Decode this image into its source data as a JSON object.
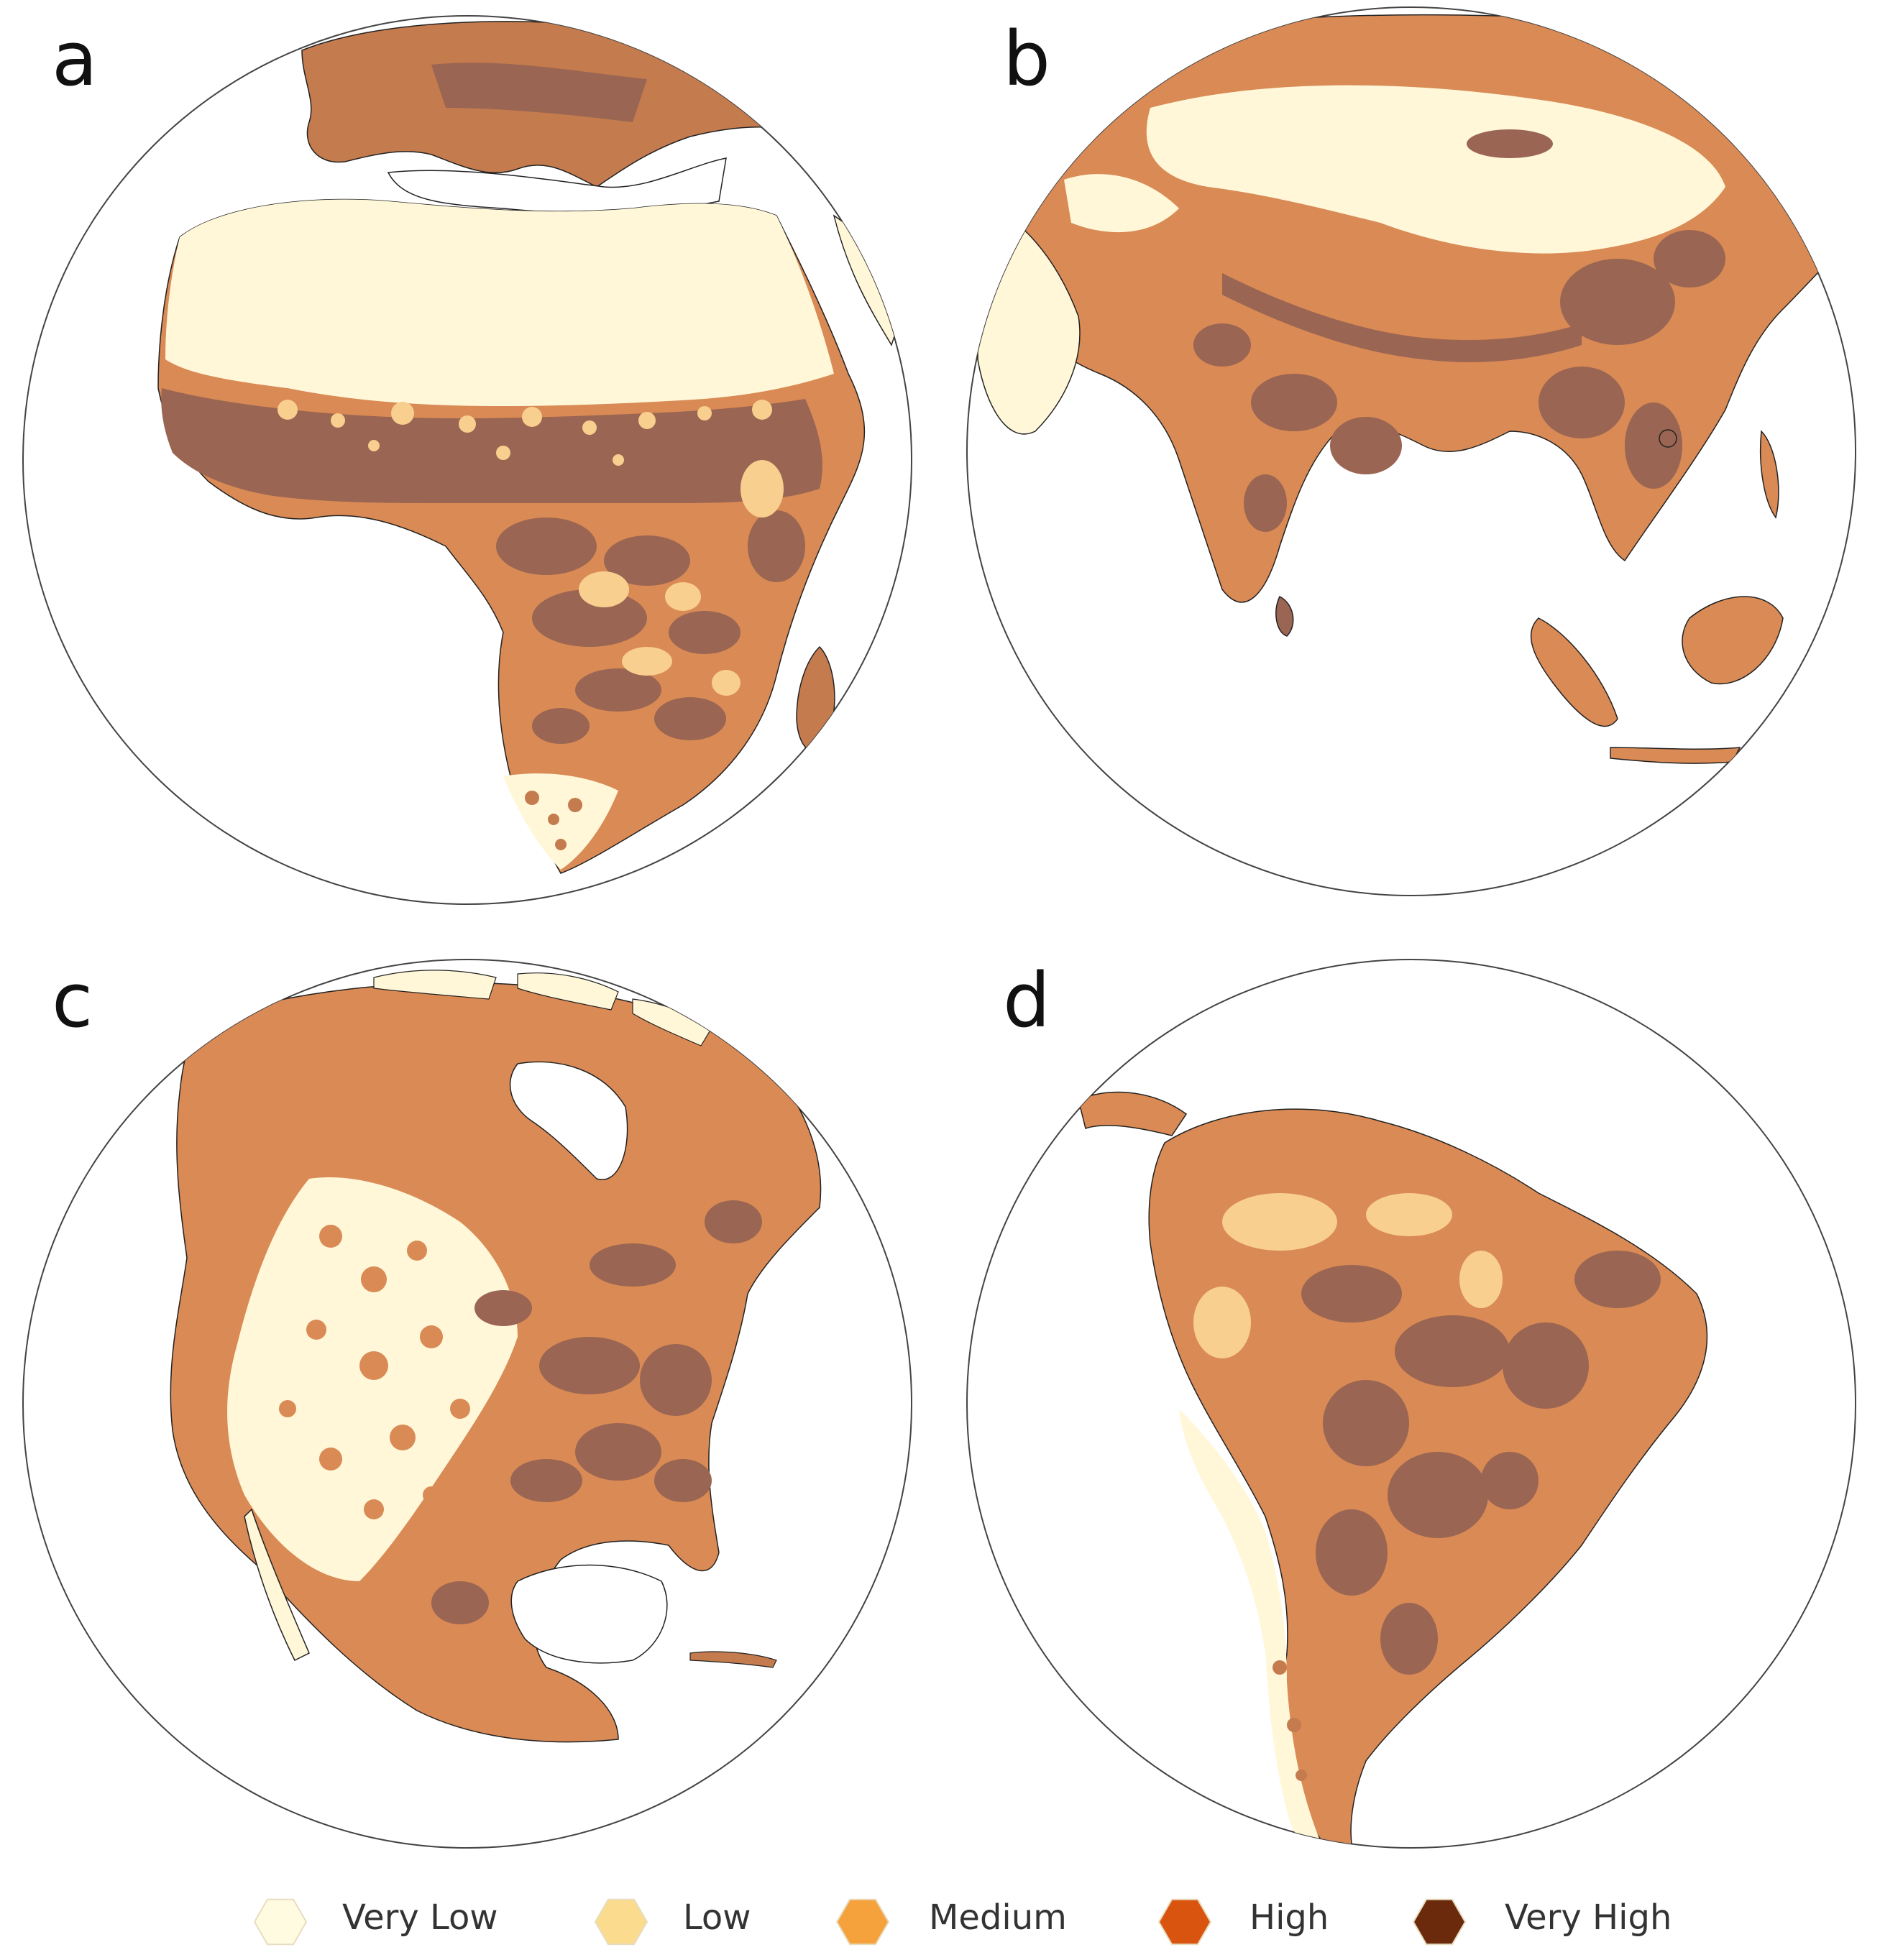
{
  "panels": [
    {
      "label": "a",
      "region": "Africa"
    },
    {
      "label": "b",
      "region": "Asia"
    },
    {
      "label": "c",
      "region": "North America"
    },
    {
      "label": "d",
      "region": "South America"
    }
  ],
  "legend": {
    "items": [
      {
        "label": "Very Low",
        "color": "#fffbe0"
      },
      {
        "label": "Low",
        "color": "#fbdc8e"
      },
      {
        "label": "Medium",
        "color": "#f6a23c"
      },
      {
        "label": "High",
        "color": "#d9540f"
      },
      {
        "label": "Very High",
        "color": "#6b2a0c"
      }
    ]
  },
  "map_colors": {
    "very_low": "#fff7d8",
    "low": "#f8cf8e",
    "medium": "#d98a55",
    "high": "#c47b4e",
    "very_high": "#9a6552",
    "outline": "#222222",
    "globe_edge": "#444444"
  }
}
